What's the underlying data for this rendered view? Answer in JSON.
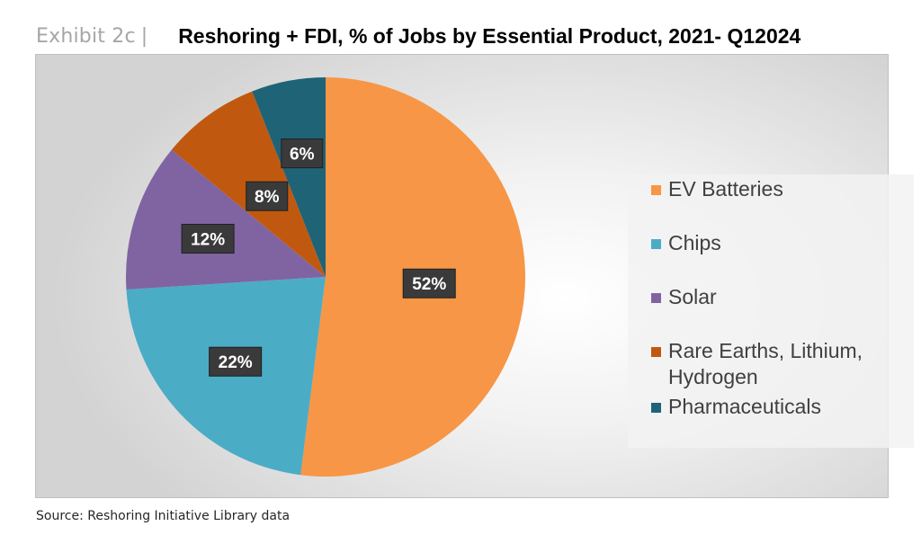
{
  "header": {
    "exhibit": "Exhibit 2c",
    "separator": "|",
    "title": "Reshoring + FDI, % of Jobs by Essential Product, 2021- Q12024"
  },
  "source": "Source: Reshoring Initiative Library data",
  "chart_data": {
    "type": "pie",
    "title": "Reshoring + FDI, % of Jobs by Essential Product, 2021- Q12024",
    "legend_position": "right",
    "slices": [
      {
        "label": "EV Batteries",
        "value": 52,
        "data_label": "52%",
        "color": "#F79646"
      },
      {
        "label": "Chips",
        "value": 22,
        "data_label": "22%",
        "color": "#4BACC6"
      },
      {
        "label": "Solar",
        "value": 12,
        "data_label": "12%",
        "color": "#8064A2"
      },
      {
        "label": "Rare Earths, Lithium, Hydrogen",
        "value": 8,
        "data_label": "8%",
        "color": "#C0590F"
      },
      {
        "label": "Pharmaceuticals",
        "value": 6,
        "data_label": "6%",
        "color": "#1F6377"
      }
    ]
  }
}
